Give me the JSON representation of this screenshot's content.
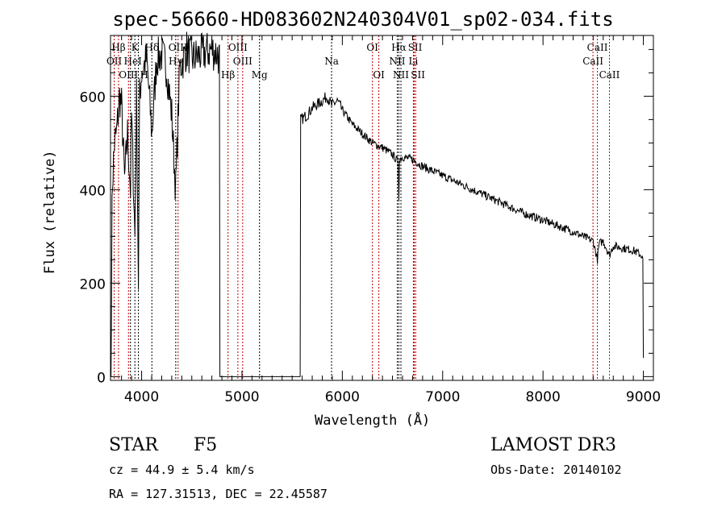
{
  "chart_data": {
    "type": "line",
    "title": "spec-56660-HD083602N240304V01_sp02-034.fits",
    "xlabel": "Wavelength (Å)",
    "ylabel": "Flux (relative)",
    "xlim": [
      3690,
      9100
    ],
    "ylim": [
      -8,
      730
    ],
    "xticks": [
      4000,
      5000,
      6000,
      7000,
      8000,
      9000
    ],
    "yticks": [
      0,
      200,
      400,
      600
    ],
    "series": [
      {
        "name": "flux",
        "x": [
          3695,
          3700,
          3705,
          3710,
          3730,
          3750,
          3780,
          3800,
          3830,
          3860,
          3889,
          3900,
          3933,
          3950,
          3968,
          3980,
          4000,
          4050,
          4102,
          4150,
          4200,
          4250,
          4300,
          4340,
          4380,
          4450,
          4500,
          4600,
          4700,
          4760,
          4775,
          4780,
          5580,
          5585,
          5590,
          5650,
          5700,
          5800,
          5850,
          5893,
          5950,
          6000,
          6100,
          6200,
          6300,
          6400,
          6500,
          6555,
          6563,
          6570,
          6600,
          6700,
          6800,
          7000,
          7200,
          7500,
          7800,
          8000,
          8300,
          8500,
          8542,
          8560,
          8600,
          8662,
          8700,
          8900,
          8980,
          8995,
          9000
        ],
        "y": [
          0,
          180,
          350,
          420,
          500,
          520,
          600,
          580,
          420,
          520,
          400,
          560,
          300,
          600,
          200,
          600,
          650,
          680,
          520,
          680,
          690,
          660,
          560,
          400,
          660,
          700,
          680,
          690,
          700,
          690,
          680,
          0,
          0,
          550,
          550,
          560,
          575,
          590,
          600,
          580,
          590,
          570,
          540,
          520,
          500,
          490,
          475,
          460,
          380,
          465,
          470,
          465,
          450,
          430,
          410,
          380,
          350,
          335,
          310,
          290,
          250,
          285,
          290,
          260,
          280,
          270,
          260,
          250,
          40
        ]
      }
    ],
    "lines": [
      {
        "label": "Hδ",
        "w": 4102,
        "row": 0,
        "color": "#000000"
      },
      {
        "label": "Hβ",
        "w": 3770,
        "row": 0,
        "color": "#c00000"
      },
      {
        "label": "K",
        "w": 3933,
        "row": 0,
        "color": "#000000"
      },
      {
        "label": "OIII",
        "w": 4363,
        "row": 0,
        "color": "#c00000"
      },
      {
        "label": "OII",
        "w": 3727,
        "row": 1,
        "color": "#c00000"
      },
      {
        "label": "HeI",
        "w": 3889,
        "row": 1,
        "color": "#000000"
      },
      {
        "label": "Hγ",
        "w": 4340,
        "row": 1,
        "color": "#000000"
      },
      {
        "label": "OIII",
        "w": 3869,
        "row": 2,
        "color": "#c00000"
      },
      {
        "label": "H",
        "w": 3968,
        "row": 2,
        "color": "#000000"
      },
      {
        "label": "Hβ",
        "w": 4861,
        "row": 2,
        "color": "#c00000"
      },
      {
        "label": "OIII",
        "w": 4959,
        "row": 0,
        "color": "#c00000"
      },
      {
        "label": "OIII",
        "w": 5007,
        "row": 1,
        "color": "#c00000"
      },
      {
        "label": "Mg",
        "w": 5175,
        "row": 2,
        "color": "#000000"
      },
      {
        "label": "Na",
        "w": 5893,
        "row": 1,
        "color": "#000000"
      },
      {
        "label": "OI",
        "w": 6300,
        "row": 0,
        "color": "#c00000"
      },
      {
        "label": "OI",
        "w": 6364,
        "row": 2,
        "color": "#c00000"
      },
      {
        "label": "Hα",
        "w": 6563,
        "row": 0,
        "color": "#000000"
      },
      {
        "label": "NII",
        "w": 6548,
        "row": 1,
        "color": "#000000"
      },
      {
        "label": "NII",
        "w": 6584,
        "row": 2,
        "color": "#000000"
      },
      {
        "label": "SII",
        "w": 6717,
        "row": 0,
        "color": "#c00000"
      },
      {
        "label": "Li",
        "w": 6708,
        "row": 1,
        "color": "#c00000"
      },
      {
        "label": "SII",
        "w": 6731,
        "row": 2,
        "color": "#c00000"
      },
      {
        "label": "CaII",
        "w": 8542,
        "row": 0,
        "color": "#c00000"
      },
      {
        "label": "CaII",
        "w": 8498,
        "row": 1,
        "color": "#c00000"
      },
      {
        "label": "CaII",
        "w": 8662,
        "row": 2,
        "color": "#c00000"
      }
    ]
  },
  "info": {
    "class": "STAR",
    "subclass": "F5",
    "cz": "cz = 44.9 ± 5.4 km/s",
    "coords": "RA = 127.31513, DEC =  22.45587",
    "survey": "LAMOST DR3",
    "obsdate": "Obs-Date: 20140102"
  }
}
